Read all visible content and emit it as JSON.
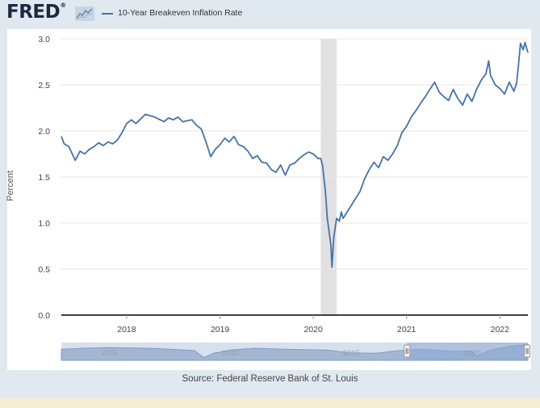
{
  "header": {
    "logo_text": "FRED",
    "logo_registered": "®",
    "logo_mark": "trend-line-icon"
  },
  "source": "Source: Federal Reserve Bank of St. Louis",
  "navigator": {
    "labels": [
      "2005",
      "2010",
      "2015",
      "2020"
    ],
    "label_years": [
      2005,
      2010,
      2015,
      2020
    ],
    "range_start": 2003,
    "range_end": 2022.3,
    "selected_start": 2017.3,
    "selected_end": 2022.3
  },
  "colors": {
    "line": "#4572a7",
    "recession": "#e1e1e1",
    "axis": "#000000",
    "grid": "#e6e6e6",
    "navigator_fill": "#a3b7d4",
    "navigator_selected": "#8eaad2"
  },
  "chart_data": {
    "type": "line",
    "title": "",
    "series": [
      {
        "name": "10-Year Breakeven Inflation Rate",
        "x": [
          2017.3,
          2017.33,
          2017.38,
          2017.45,
          2017.5,
          2017.55,
          2017.6,
          2017.65,
          2017.7,
          2017.75,
          2017.8,
          2017.85,
          2017.9,
          2017.95,
          2018.0,
          2018.05,
          2018.1,
          2018.15,
          2018.2,
          2018.3,
          2018.4,
          2018.45,
          2018.5,
          2018.55,
          2018.6,
          2018.7,
          2018.75,
          2018.8,
          2018.85,
          2018.9,
          2018.95,
          2019.0,
          2019.05,
          2019.1,
          2019.15,
          2019.2,
          2019.25,
          2019.3,
          2019.35,
          2019.4,
          2019.45,
          2019.5,
          2019.55,
          2019.6,
          2019.65,
          2019.7,
          2019.75,
          2019.8,
          2019.85,
          2019.9,
          2019.95,
          2020.0,
          2020.05,
          2020.08,
          2020.1,
          2020.13,
          2020.15,
          2020.17,
          2020.19,
          2020.2,
          2020.22,
          2020.25,
          2020.28,
          2020.3,
          2020.32,
          2020.35,
          2020.4,
          2020.45,
          2020.5,
          2020.55,
          2020.6,
          2020.65,
          2020.7,
          2020.75,
          2020.8,
          2020.85,
          2020.9,
          2020.95,
          2021.0,
          2021.05,
          2021.1,
          2021.15,
          2021.2,
          2021.25,
          2021.3,
          2021.35,
          2021.4,
          2021.45,
          2021.5,
          2021.55,
          2021.6,
          2021.65,
          2021.7,
          2021.75,
          2021.8,
          2021.85,
          2021.88,
          2021.9,
          2021.95,
          2022.0,
          2022.05,
          2022.1,
          2022.15,
          2022.18,
          2022.2,
          2022.22,
          2022.25,
          2022.27,
          2022.3
        ],
        "values": [
          1.94,
          1.86,
          1.83,
          1.68,
          1.78,
          1.75,
          1.8,
          1.83,
          1.87,
          1.84,
          1.88,
          1.86,
          1.9,
          1.98,
          2.08,
          2.12,
          2.08,
          2.13,
          2.18,
          2.15,
          2.1,
          2.14,
          2.12,
          2.15,
          2.1,
          2.12,
          2.06,
          2.02,
          1.88,
          1.72,
          1.8,
          1.85,
          1.92,
          1.88,
          1.94,
          1.85,
          1.83,
          1.78,
          1.7,
          1.73,
          1.66,
          1.65,
          1.58,
          1.55,
          1.63,
          1.52,
          1.63,
          1.65,
          1.7,
          1.74,
          1.77,
          1.75,
          1.7,
          1.7,
          1.62,
          1.35,
          1.05,
          0.9,
          0.75,
          0.52,
          0.85,
          1.05,
          1.02,
          1.12,
          1.05,
          1.1,
          1.18,
          1.26,
          1.34,
          1.48,
          1.58,
          1.66,
          1.6,
          1.72,
          1.68,
          1.75,
          1.84,
          1.98,
          2.05,
          2.15,
          2.22,
          2.3,
          2.37,
          2.45,
          2.53,
          2.42,
          2.37,
          2.33,
          2.45,
          2.35,
          2.28,
          2.4,
          2.32,
          2.45,
          2.55,
          2.62,
          2.76,
          2.6,
          2.5,
          2.46,
          2.4,
          2.53,
          2.43,
          2.52,
          2.72,
          2.95,
          2.88,
          2.96,
          2.85
        ]
      }
    ],
    "recession": [
      2020.08,
      2020.25
    ],
    "xlabel": "",
    "ylabel": "Percent",
    "xlim": [
      2017.3,
      2022.3
    ],
    "ylim": [
      0,
      3
    ],
    "xticks": [
      2018,
      2019,
      2020,
      2021,
      2022
    ],
    "xtick_labels": [
      "2018",
      "2019",
      "2020",
      "2021",
      "2022"
    ],
    "yticks": [
      0,
      0.5,
      1,
      1.5,
      2,
      2.5,
      3
    ],
    "ytick_labels": [
      "0.0",
      "0.5",
      "1.0",
      "1.5",
      "2.0",
      "2.5",
      "3.0"
    ],
    "grid": true,
    "legend": "top-left"
  }
}
